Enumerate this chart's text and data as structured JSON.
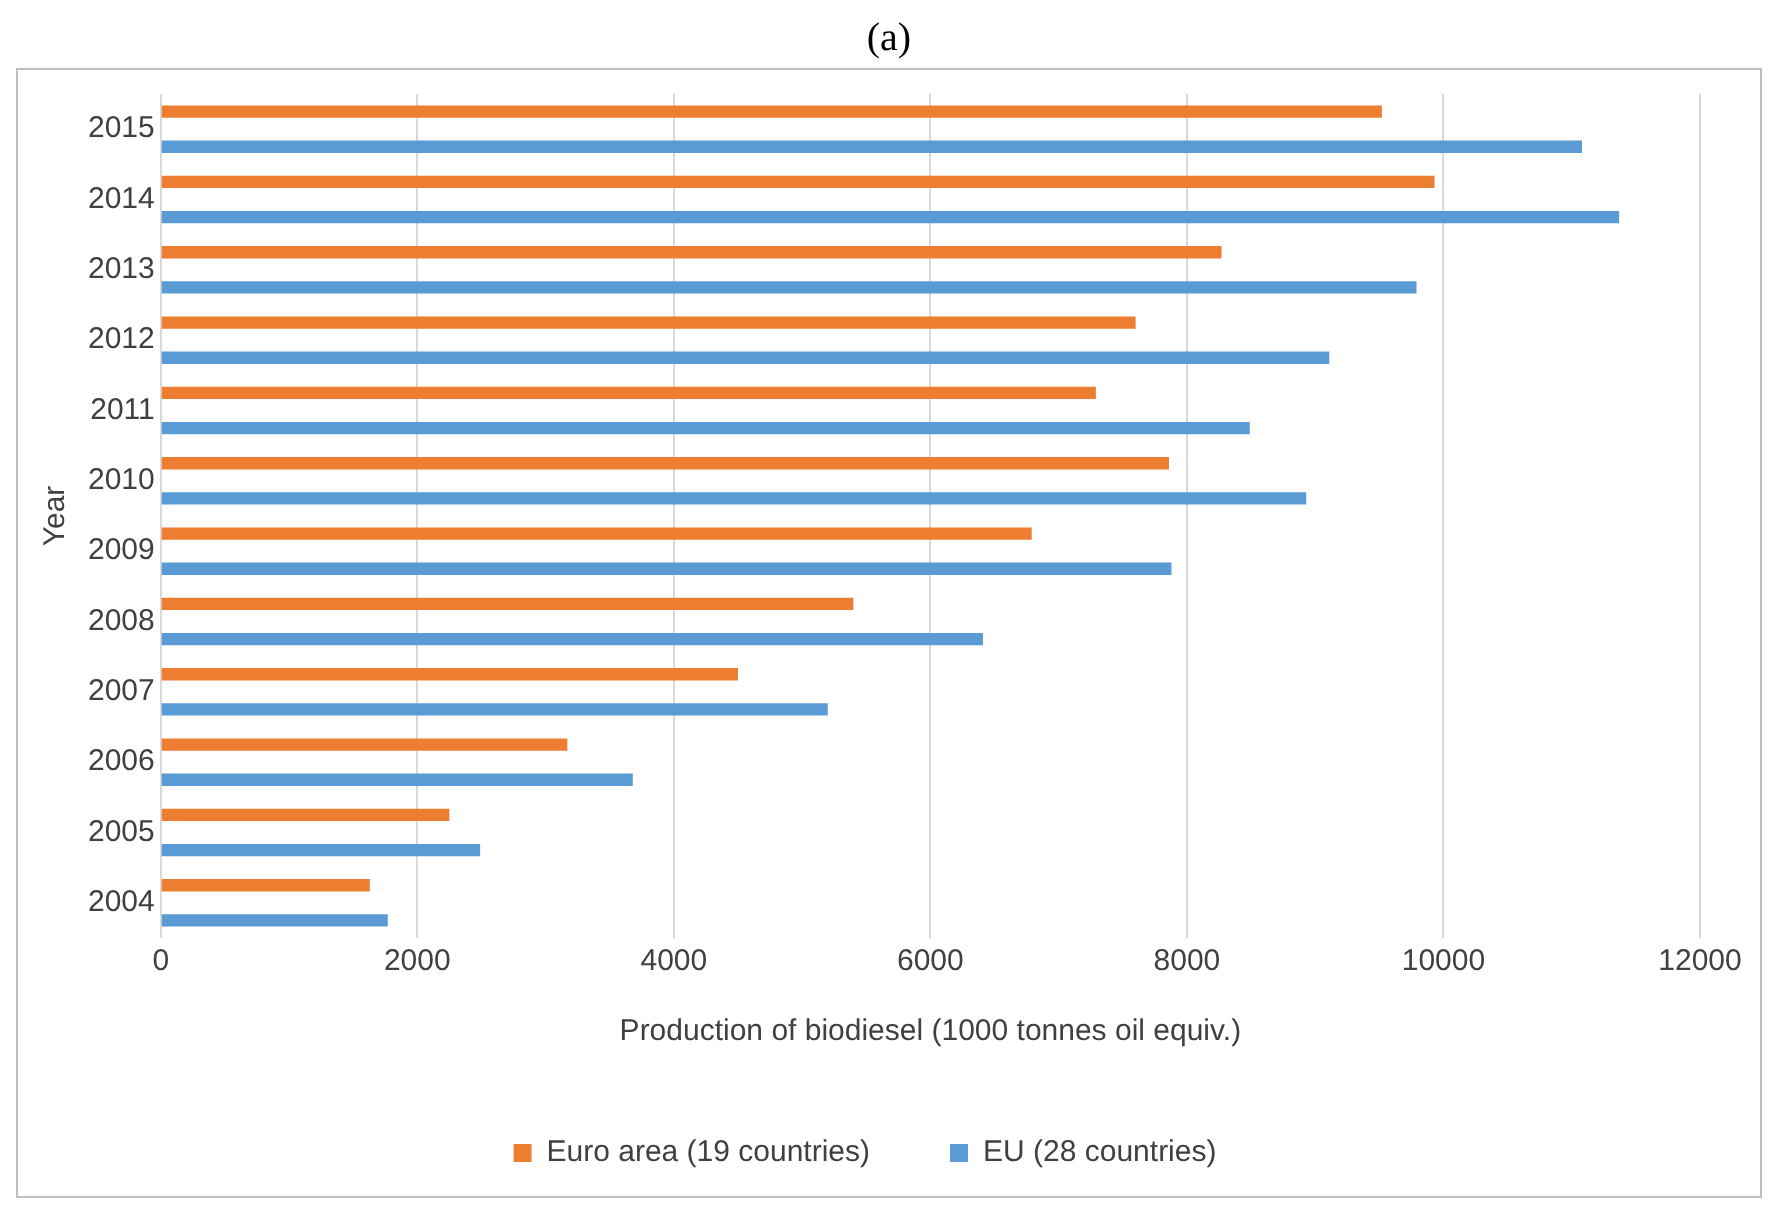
{
  "chart_data": {
    "type": "bar",
    "orientation": "horizontal",
    "title": "(a)",
    "xlabel": "Production of biodiesel (1000 tonnes oil equiv.)",
    "ylabel": "Year",
    "categories": [
      "2015",
      "2014",
      "2013",
      "2012",
      "2011",
      "2010",
      "2009",
      "2008",
      "2007",
      "2006",
      "2005",
      "2004"
    ],
    "series": [
      {
        "name": "Euro area (19 countries)",
        "color": "#ed7d31",
        "values": [
          9520,
          9930,
          8270,
          7600,
          7290,
          7860,
          6790,
          5400,
          4500,
          3170,
          2250,
          1630
        ]
      },
      {
        "name": "EU (28 countries)",
        "color": "#5b9bd5",
        "values": [
          11080,
          11370,
          9790,
          9110,
          8490,
          8930,
          7880,
          6410,
          5200,
          3680,
          2490,
          1770
        ]
      }
    ],
    "xlim": [
      0,
      12000
    ],
    "xticks": [
      0,
      2000,
      4000,
      6000,
      8000,
      10000,
      12000
    ],
    "grid": "x",
    "legend": "bottom"
  }
}
